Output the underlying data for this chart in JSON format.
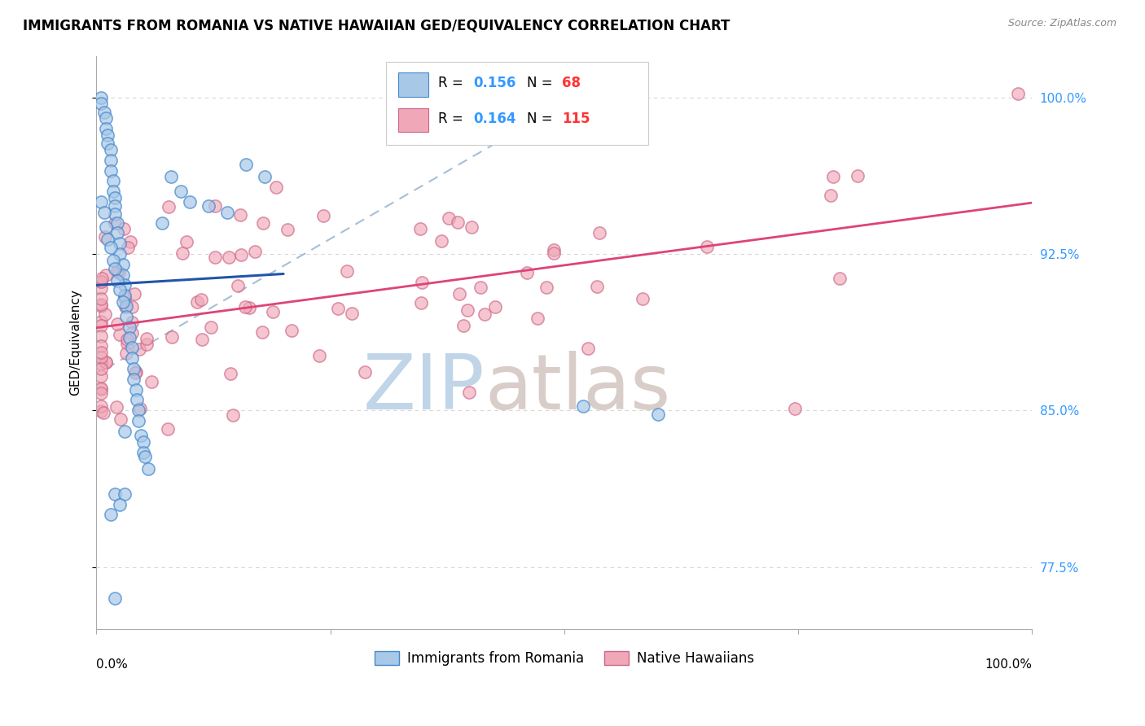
{
  "title": "IMMIGRANTS FROM ROMANIA VS NATIVE HAWAIIAN GED/EQUIVALENCY CORRELATION CHART",
  "source": "Source: ZipAtlas.com",
  "ylabel": "GED/Equivalency",
  "ytick_labels": [
    "77.5%",
    "85.0%",
    "92.5%",
    "100.0%"
  ],
  "ytick_values": [
    0.775,
    0.85,
    0.925,
    1.0
  ],
  "legend_label1": "Immigrants from Romania",
  "legend_label2": "Native Hawaiians",
  "R1": "0.156",
  "N1": "68",
  "R2": "0.164",
  "N2": "115",
  "blue_fill": "#a8c8e8",
  "blue_edge": "#4488cc",
  "pink_fill": "#f0a8b8",
  "pink_edge": "#cc6688",
  "blue_line_color": "#2255aa",
  "pink_line_color": "#dd4477",
  "legend_R_color": "#3399ff",
  "legend_N_color": "#ff3333",
  "background_color": "#ffffff",
  "grid_color": "#cccccc",
  "tick_color": "#3399ff",
  "xlim": [
    0.0,
    1.0
  ],
  "ylim": [
    0.745,
    1.02
  ]
}
